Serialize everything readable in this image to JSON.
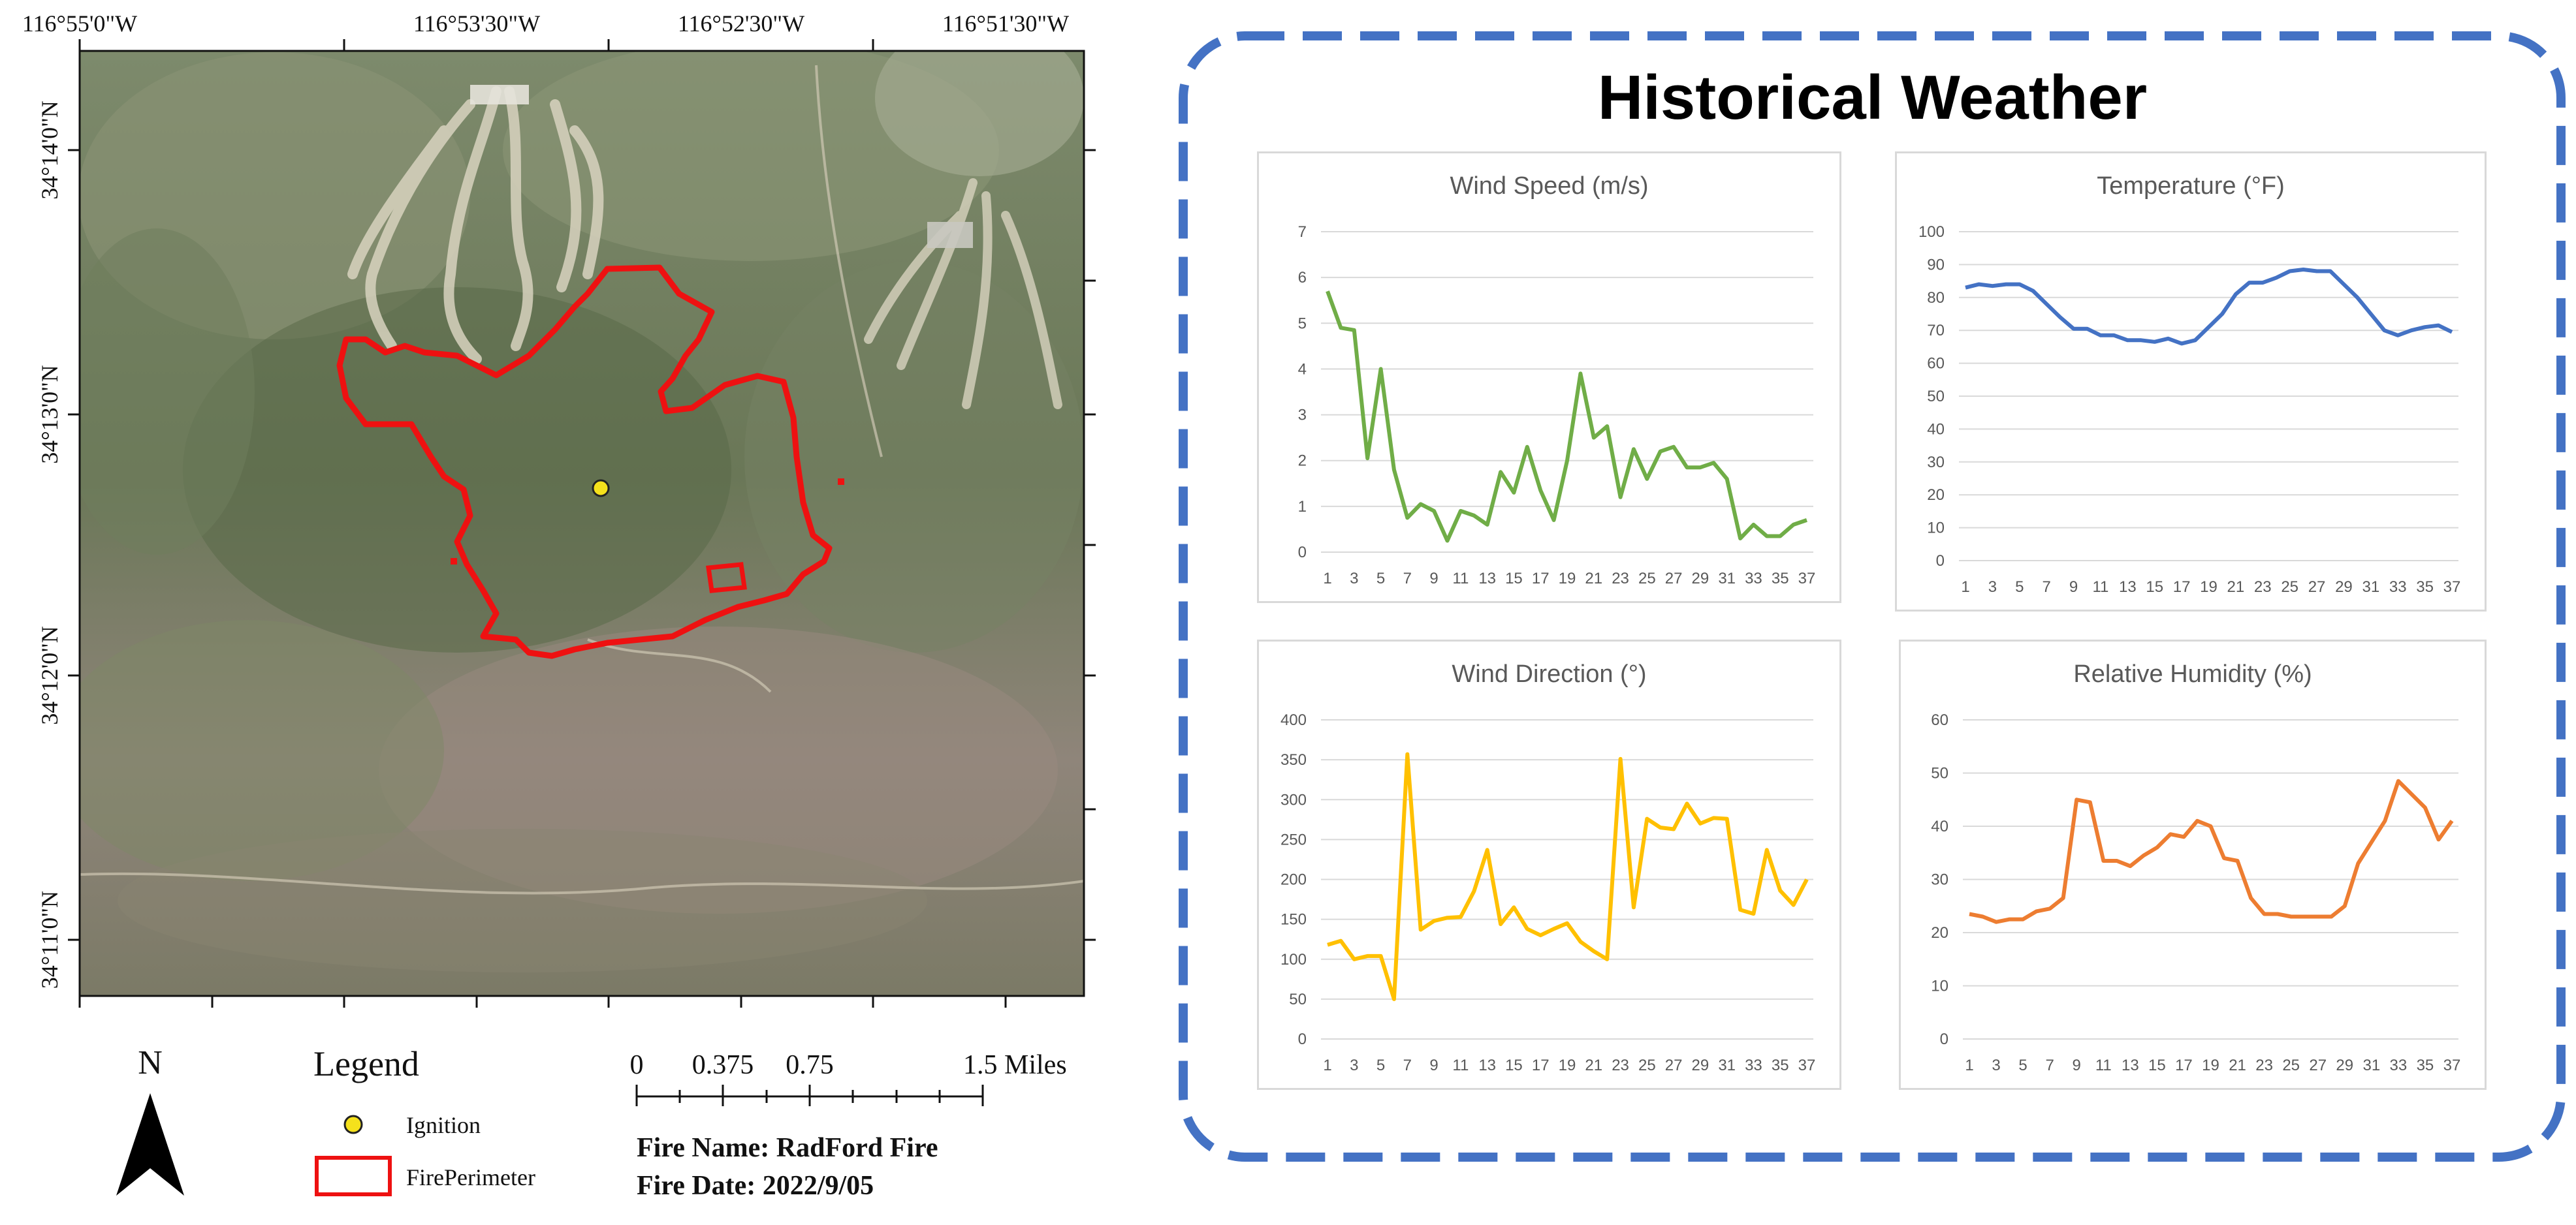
{
  "map": {
    "graticule": {
      "top_labels": [
        "116°55'0\"W",
        "116°53'30\"W",
        "116°52'30\"W",
        "116°51'30\"W"
      ],
      "left_labels": [
        "34°14'0\"N",
        "34°13'0\"N",
        "34°12'0\"N",
        "34°11'0\"N"
      ]
    },
    "north_arrow": {
      "label": "N"
    },
    "legend": {
      "title": "Legend",
      "items": [
        {
          "label": "Ignition",
          "symbol": "yellow-circle",
          "color": "#f5e11c"
        },
        {
          "label": "FirePerimeter",
          "symbol": "red-outline-rect",
          "color": "#ee1111"
        }
      ]
    },
    "scale_bar": {
      "labels": [
        "0",
        "0.375",
        "0.75",
        "1.5 Miles"
      ]
    },
    "fire_info": {
      "name_line": "Fire Name: RadFord Fire",
      "date_line": "Fire Date: 2022/9/05"
    }
  },
  "weather": {
    "title": "Historical Weather",
    "border_color": "#4472c4",
    "x_tick_labels": [
      "1",
      "3",
      "5",
      "7",
      "9",
      "11",
      "13",
      "15",
      "17",
      "19",
      "21",
      "23",
      "25",
      "27",
      "29",
      "31",
      "33",
      "35",
      "37"
    ],
    "chart_data": [
      {
        "type": "line",
        "title": "Wind Speed (m/s)",
        "color": "#70ad47",
        "x": [
          1,
          2,
          3,
          4,
          5,
          6,
          7,
          8,
          9,
          10,
          11,
          12,
          13,
          14,
          15,
          16,
          17,
          18,
          19,
          20,
          21,
          22,
          23,
          24,
          25,
          26,
          27,
          28,
          29,
          30,
          31,
          32,
          33,
          34,
          35,
          36,
          37
        ],
        "values": [
          5.7,
          4.9,
          4.85,
          2.05,
          4.0,
          1.8,
          0.75,
          1.05,
          0.9,
          0.25,
          0.9,
          0.8,
          0.6,
          1.75,
          1.3,
          2.3,
          1.35,
          0.7,
          2.0,
          3.9,
          2.5,
          2.75,
          1.2,
          2.25,
          1.6,
          2.2,
          2.3,
          1.85,
          1.85,
          1.95,
          1.6,
          0.3,
          0.6,
          0.35,
          0.35,
          0.6,
          0.7
        ],
        "ylim": [
          0,
          7
        ],
        "yticks": [
          0,
          1,
          2,
          3,
          4,
          5,
          6,
          7
        ]
      },
      {
        "type": "line",
        "title": "Temperature (°F)",
        "color": "#4472c4",
        "x": [
          1,
          2,
          3,
          4,
          5,
          6,
          7,
          8,
          9,
          10,
          11,
          12,
          13,
          14,
          15,
          16,
          17,
          18,
          19,
          20,
          21,
          22,
          23,
          24,
          25,
          26,
          27,
          28,
          29,
          30,
          31,
          32,
          33,
          34,
          35,
          36,
          37
        ],
        "values": [
          83,
          84,
          83.5,
          84,
          84,
          82,
          78,
          74,
          70.5,
          70.5,
          68.5,
          68.5,
          67,
          67,
          66.5,
          67.5,
          66,
          67,
          71,
          75,
          81,
          84.5,
          84.5,
          86,
          88,
          88.5,
          88,
          88,
          84,
          80,
          75,
          70,
          68.5,
          70,
          71,
          71.5,
          69.5
        ],
        "ylim": [
          0,
          100
        ],
        "yticks": [
          0,
          10,
          20,
          30,
          40,
          50,
          60,
          70,
          80,
          90,
          100
        ]
      },
      {
        "type": "line",
        "title": "Wind Direction (°)",
        "color": "#ffc000",
        "x": [
          1,
          2,
          3,
          4,
          5,
          6,
          7,
          8,
          9,
          10,
          11,
          12,
          13,
          14,
          15,
          16,
          17,
          18,
          19,
          20,
          21,
          22,
          23,
          24,
          25,
          26,
          27,
          28,
          29,
          30,
          31,
          32,
          33,
          34,
          35,
          36,
          37
        ],
        "values": [
          118,
          123,
          100,
          104,
          104,
          50,
          357,
          137,
          148,
          152,
          153,
          185,
          237,
          144,
          165,
          138,
          130,
          138,
          145,
          122,
          110,
          100,
          351,
          165,
          276,
          265,
          263,
          295,
          270,
          277,
          276,
          162,
          157,
          237,
          186,
          168,
          200
        ],
        "ylim": [
          0,
          400
        ],
        "yticks": [
          0,
          50,
          100,
          150,
          200,
          250,
          300,
          350,
          400
        ]
      },
      {
        "type": "line",
        "title": "Relative Humidity (%)",
        "color": "#ed7d31",
        "x": [
          1,
          2,
          3,
          4,
          5,
          6,
          7,
          8,
          9,
          10,
          11,
          12,
          13,
          14,
          15,
          16,
          17,
          18,
          19,
          20,
          21,
          22,
          23,
          24,
          25,
          26,
          27,
          28,
          29,
          30,
          31,
          32,
          33,
          34,
          35,
          36,
          37
        ],
        "values": [
          23.5,
          23,
          22,
          22.5,
          22.5,
          24,
          24.5,
          26.5,
          45,
          44.5,
          33.5,
          33.5,
          32.5,
          34.5,
          36,
          38.5,
          38,
          41,
          40,
          34,
          33.5,
          26.5,
          23.5,
          23.5,
          23,
          23,
          23,
          23,
          25,
          33,
          37,
          41,
          48.5,
          46,
          43.5,
          37.5,
          41
        ],
        "ylim": [
          0,
          60
        ],
        "yticks": [
          0,
          10,
          20,
          30,
          40,
          50,
          60
        ]
      }
    ]
  }
}
